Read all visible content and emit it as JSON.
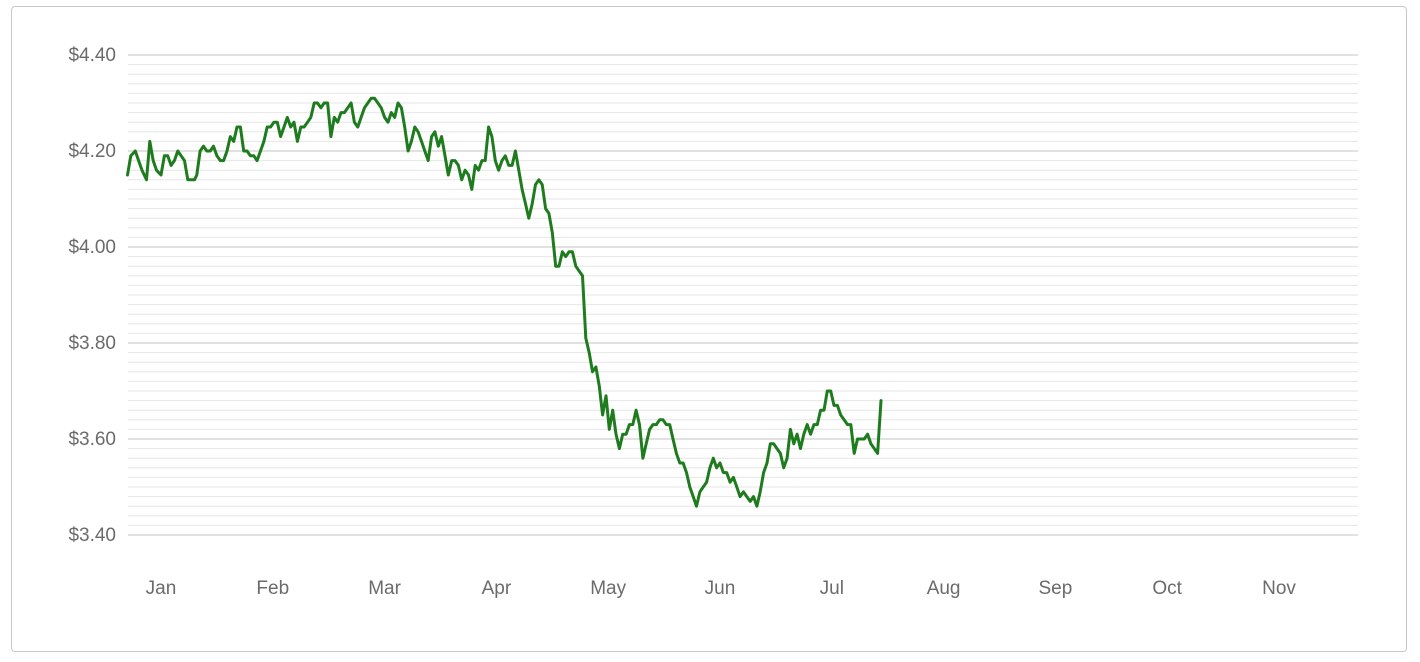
{
  "chart_data": {
    "type": "line",
    "title": "",
    "xlabel": "",
    "ylabel": "",
    "ylim": [
      3.4,
      4.4
    ],
    "y_ticks": [
      {
        "value": 4.4,
        "label": "$4.40"
      },
      {
        "value": 4.2,
        "label": "$4.20"
      },
      {
        "value": 4.0,
        "label": "$4.00"
      },
      {
        "value": 3.8,
        "label": "$3.80"
      },
      {
        "value": 3.6,
        "label": "$3.60"
      },
      {
        "value": 3.4,
        "label": "$3.40"
      }
    ],
    "x_ticks": [
      {
        "month": 1,
        "label": "Jan"
      },
      {
        "month": 2,
        "label": "Feb"
      },
      {
        "month": 3,
        "label": "Mar"
      },
      {
        "month": 4,
        "label": "Apr"
      },
      {
        "month": 5,
        "label": "May"
      },
      {
        "month": 6,
        "label": "Jun"
      },
      {
        "month": 7,
        "label": "Jul"
      },
      {
        "month": 8,
        "label": "Aug"
      },
      {
        "month": 9,
        "label": "Sep"
      },
      {
        "month": 10,
        "label": "Oct"
      },
      {
        "month": 11,
        "label": "Nov"
      }
    ],
    "grid": true,
    "minor_grid_step": 0.02,
    "line_color": "#1e7b1e",
    "series": [
      {
        "points": [
          [
            0.7,
            4.15
          ],
          [
            0.73,
            4.19
          ],
          [
            0.77,
            4.2
          ],
          [
            0.8,
            4.18
          ],
          [
            0.83,
            4.16
          ],
          [
            0.87,
            4.14
          ],
          [
            0.9,
            4.22
          ],
          [
            0.93,
            4.18
          ],
          [
            0.96,
            4.16
          ],
          [
            1.0,
            4.15
          ],
          [
            1.03,
            4.19
          ],
          [
            1.06,
            4.19
          ],
          [
            1.09,
            4.17
          ],
          [
            1.12,
            4.18
          ],
          [
            1.15,
            4.2
          ],
          [
            1.18,
            4.19
          ],
          [
            1.21,
            4.18
          ],
          [
            1.24,
            4.14
          ],
          [
            1.27,
            4.14
          ],
          [
            1.3,
            4.14
          ],
          [
            1.32,
            4.15
          ],
          [
            1.35,
            4.2
          ],
          [
            1.38,
            4.21
          ],
          [
            1.41,
            4.2
          ],
          [
            1.44,
            4.2
          ],
          [
            1.47,
            4.21
          ],
          [
            1.5,
            4.19
          ],
          [
            1.53,
            4.18
          ],
          [
            1.56,
            4.18
          ],
          [
            1.59,
            4.2
          ],
          [
            1.62,
            4.23
          ],
          [
            1.65,
            4.22
          ],
          [
            1.68,
            4.25
          ],
          [
            1.71,
            4.25
          ],
          [
            1.74,
            4.2
          ],
          [
            1.77,
            4.2
          ],
          [
            1.8,
            4.19
          ],
          [
            1.83,
            4.19
          ],
          [
            1.86,
            4.18
          ],
          [
            1.89,
            4.2
          ],
          [
            1.92,
            4.22
          ],
          [
            1.95,
            4.25
          ],
          [
            1.98,
            4.25
          ],
          [
            2.01,
            4.26
          ],
          [
            2.04,
            4.26
          ],
          [
            2.07,
            4.23
          ],
          [
            2.1,
            4.25
          ],
          [
            2.13,
            4.27
          ],
          [
            2.16,
            4.25
          ],
          [
            2.19,
            4.26
          ],
          [
            2.22,
            4.22
          ],
          [
            2.25,
            4.25
          ],
          [
            2.28,
            4.25
          ],
          [
            2.31,
            4.26
          ],
          [
            2.34,
            4.27
          ],
          [
            2.37,
            4.3
          ],
          [
            2.4,
            4.3
          ],
          [
            2.43,
            4.29
          ],
          [
            2.46,
            4.3
          ],
          [
            2.49,
            4.3
          ],
          [
            2.52,
            4.23
          ],
          [
            2.55,
            4.27
          ],
          [
            2.58,
            4.26
          ],
          [
            2.61,
            4.28
          ],
          [
            2.64,
            4.28
          ],
          [
            2.67,
            4.29
          ],
          [
            2.7,
            4.3
          ],
          [
            2.73,
            4.26
          ],
          [
            2.76,
            4.25
          ],
          [
            2.79,
            4.27
          ],
          [
            2.82,
            4.29
          ],
          [
            2.85,
            4.3
          ],
          [
            2.88,
            4.31
          ],
          [
            2.91,
            4.31
          ],
          [
            2.94,
            4.3
          ],
          [
            2.97,
            4.29
          ],
          [
            3.0,
            4.27
          ],
          [
            3.03,
            4.26
          ],
          [
            3.06,
            4.28
          ],
          [
            3.09,
            4.27
          ],
          [
            3.12,
            4.3
          ],
          [
            3.15,
            4.29
          ],
          [
            3.18,
            4.25
          ],
          [
            3.21,
            4.2
          ],
          [
            3.24,
            4.22
          ],
          [
            3.27,
            4.25
          ],
          [
            3.3,
            4.24
          ],
          [
            3.33,
            4.22
          ],
          [
            3.36,
            4.2
          ],
          [
            3.39,
            4.18
          ],
          [
            3.42,
            4.23
          ],
          [
            3.45,
            4.24
          ],
          [
            3.48,
            4.21
          ],
          [
            3.51,
            4.23
          ],
          [
            3.54,
            4.19
          ],
          [
            3.57,
            4.15
          ],
          [
            3.6,
            4.18
          ],
          [
            3.63,
            4.18
          ],
          [
            3.66,
            4.17
          ],
          [
            3.69,
            4.14
          ],
          [
            3.72,
            4.16
          ],
          [
            3.75,
            4.15
          ],
          [
            3.78,
            4.12
          ],
          [
            3.81,
            4.17
          ],
          [
            3.84,
            4.16
          ],
          [
            3.87,
            4.18
          ],
          [
            3.9,
            4.18
          ],
          [
            3.93,
            4.25
          ],
          [
            3.96,
            4.23
          ],
          [
            3.99,
            4.18
          ],
          [
            4.02,
            4.16
          ],
          [
            4.05,
            4.18
          ],
          [
            4.08,
            4.19
          ],
          [
            4.11,
            4.17
          ],
          [
            4.14,
            4.17
          ],
          [
            4.17,
            4.2
          ],
          [
            4.2,
            4.16
          ],
          [
            4.23,
            4.12
          ],
          [
            4.26,
            4.09
          ],
          [
            4.29,
            4.06
          ],
          [
            4.32,
            4.09
          ],
          [
            4.35,
            4.13
          ],
          [
            4.38,
            4.14
          ],
          [
            4.41,
            4.13
          ],
          [
            4.44,
            4.08
          ],
          [
            4.47,
            4.07
          ],
          [
            4.5,
            4.03
          ],
          [
            4.53,
            3.96
          ],
          [
            4.56,
            3.96
          ],
          [
            4.59,
            3.99
          ],
          [
            4.62,
            3.98
          ],
          [
            4.65,
            3.99
          ],
          [
            4.68,
            3.99
          ],
          [
            4.71,
            3.96
          ],
          [
            4.74,
            3.95
          ],
          [
            4.77,
            3.94
          ],
          [
            4.8,
            3.81
          ],
          [
            4.83,
            3.78
          ],
          [
            4.86,
            3.74
          ],
          [
            4.89,
            3.75
          ],
          [
            4.92,
            3.71
          ],
          [
            4.95,
            3.65
          ],
          [
            4.98,
            3.69
          ],
          [
            5.01,
            3.62
          ],
          [
            5.04,
            3.66
          ],
          [
            5.07,
            3.61
          ],
          [
            5.1,
            3.58
          ],
          [
            5.13,
            3.61
          ],
          [
            5.16,
            3.61
          ],
          [
            5.19,
            3.63
          ],
          [
            5.22,
            3.63
          ],
          [
            5.25,
            3.66
          ],
          [
            5.28,
            3.63
          ],
          [
            5.31,
            3.56
          ],
          [
            5.34,
            3.59
          ],
          [
            5.37,
            3.62
          ],
          [
            5.4,
            3.63
          ],
          [
            5.43,
            3.63
          ],
          [
            5.46,
            3.64
          ],
          [
            5.49,
            3.64
          ],
          [
            5.52,
            3.63
          ],
          [
            5.55,
            3.63
          ],
          [
            5.58,
            3.6
          ],
          [
            5.61,
            3.57
          ],
          [
            5.64,
            3.55
          ],
          [
            5.67,
            3.55
          ],
          [
            5.7,
            3.53
          ],
          [
            5.73,
            3.5
          ],
          [
            5.76,
            3.48
          ],
          [
            5.79,
            3.46
          ],
          [
            5.82,
            3.49
          ],
          [
            5.85,
            3.5
          ],
          [
            5.88,
            3.51
          ],
          [
            5.91,
            3.54
          ],
          [
            5.94,
            3.56
          ],
          [
            5.97,
            3.54
          ],
          [
            6.0,
            3.55
          ],
          [
            6.03,
            3.53
          ],
          [
            6.06,
            3.53
          ],
          [
            6.09,
            3.51
          ],
          [
            6.12,
            3.52
          ],
          [
            6.15,
            3.5
          ],
          [
            6.18,
            3.48
          ],
          [
            6.21,
            3.49
          ],
          [
            6.24,
            3.48
          ],
          [
            6.27,
            3.47
          ],
          [
            6.3,
            3.48
          ],
          [
            6.33,
            3.46
          ],
          [
            6.36,
            3.49
          ],
          [
            6.39,
            3.53
          ],
          [
            6.42,
            3.55
          ],
          [
            6.45,
            3.59
          ],
          [
            6.48,
            3.59
          ],
          [
            6.51,
            3.58
          ],
          [
            6.54,
            3.57
          ],
          [
            6.57,
            3.54
          ],
          [
            6.6,
            3.56
          ],
          [
            6.63,
            3.62
          ],
          [
            6.66,
            3.59
          ],
          [
            6.69,
            3.61
          ],
          [
            6.72,
            3.58
          ],
          [
            6.75,
            3.61
          ],
          [
            6.78,
            3.63
          ],
          [
            6.81,
            3.61
          ],
          [
            6.84,
            3.63
          ],
          [
            6.87,
            3.63
          ],
          [
            6.9,
            3.66
          ],
          [
            6.93,
            3.66
          ],
          [
            6.96,
            3.7
          ],
          [
            6.99,
            3.7
          ],
          [
            7.02,
            3.67
          ],
          [
            7.05,
            3.67
          ],
          [
            7.08,
            3.65
          ],
          [
            7.11,
            3.64
          ],
          [
            7.14,
            3.63
          ],
          [
            7.17,
            3.63
          ],
          [
            7.2,
            3.57
          ],
          [
            7.23,
            3.6
          ],
          [
            7.26,
            3.6
          ],
          [
            7.29,
            3.6
          ],
          [
            7.32,
            3.61
          ],
          [
            7.35,
            3.59
          ],
          [
            7.38,
            3.58
          ],
          [
            7.41,
            3.57
          ],
          [
            7.44,
            3.68
          ]
        ]
      }
    ]
  }
}
